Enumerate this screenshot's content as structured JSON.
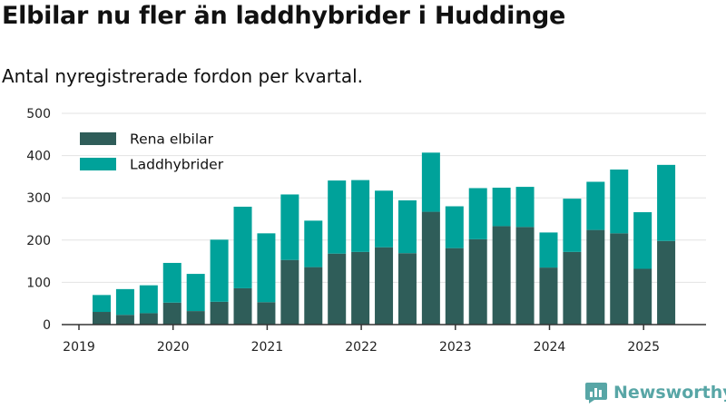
{
  "header": {
    "title": "Elbilar nu fler än laddhybrider i Huddinge",
    "subtitle": "Antal nyregistrerade fordon per kvartal."
  },
  "brand": {
    "name": "Newsworthy",
    "icon": "newsworthy-logo-icon",
    "color": "#58a6a6"
  },
  "colors": {
    "elbilar": "#2f5d59",
    "laddhybrider": "#00a29a",
    "grid": "#e3e3e3",
    "axis": "#333333"
  },
  "chart_data": {
    "type": "bar",
    "stacked": true,
    "x_ticks": [
      "2019",
      "2020",
      "2021",
      "2022",
      "2023",
      "2024",
      "2025"
    ],
    "y_ticks": [
      "0",
      "100",
      "200",
      "300",
      "400",
      "500"
    ],
    "ylim": [
      0,
      500
    ],
    "grid": true,
    "legend_position": "top-left",
    "categories": [
      "2019Q2",
      "2019Q3",
      "2019Q4",
      "2020Q1",
      "2020Q2",
      "2020Q3",
      "2020Q4",
      "2021Q1",
      "2021Q2",
      "2021Q3",
      "2021Q4",
      "2022Q1",
      "2022Q2",
      "2022Q3",
      "2022Q4",
      "2023Q1",
      "2023Q2",
      "2023Q3",
      "2023Q4",
      "2024Q1",
      "2024Q2",
      "2024Q3",
      "2024Q4",
      "2025Q1",
      "2025Q2"
    ],
    "series": [
      {
        "name": "Rena elbilar",
        "values": [
          30,
          23,
          27,
          52,
          32,
          54,
          86,
          53,
          153,
          136,
          168,
          172,
          183,
          169,
          267,
          181,
          202,
          233,
          231,
          135,
          172,
          224,
          216,
          132,
          198
        ]
      },
      {
        "name": "Laddhybrider",
        "values": [
          40,
          61,
          66,
          94,
          88,
          147,
          193,
          163,
          155,
          110,
          173,
          170,
          134,
          125,
          140,
          99,
          121,
          91,
          95,
          83,
          126,
          114,
          151,
          134,
          180
        ]
      }
    ]
  }
}
